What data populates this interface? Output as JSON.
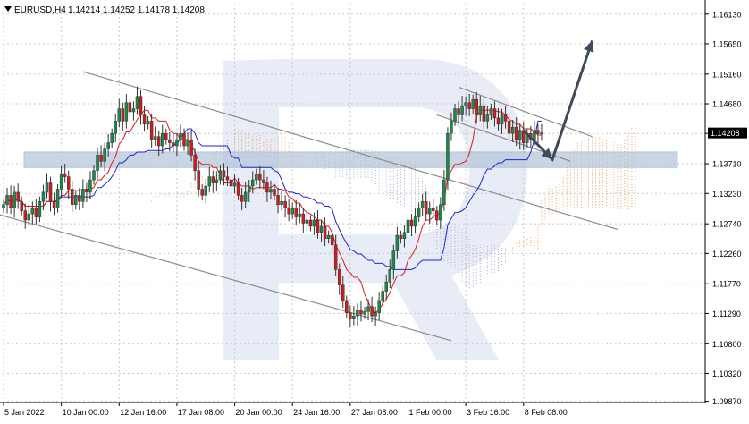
{
  "header": {
    "symbol": "EURUSD,H4",
    "ohlc": "1.14214 1.14252 1.14178 1.14208"
  },
  "chart_data": {
    "type": "candlestick",
    "symbol": "EURUSD",
    "timeframe": "H4",
    "ohlc_last": {
      "open": 1.14214,
      "high": 1.14252,
      "low": 1.14178,
      "close": 1.14208
    },
    "current_price": 1.14208,
    "current_price_label": "1.14208",
    "ylim": [
      1.0985,
      1.163
    ],
    "y_ticks": [
      1.0987,
      1.1032,
      1.108,
      1.1129,
      1.1177,
      1.1226,
      1.1274,
      1.1323,
      1.1371,
      1.142,
      1.1468,
      1.1516,
      1.1565,
      1.1613
    ],
    "y_tick_labels": [
      "1.09870",
      "1.10320",
      "1.10800",
      "1.11290",
      "1.11770",
      "1.12260",
      "1.12740",
      "1.13230",
      "1.13710",
      "1.14200",
      "1.14680",
      "1.15160",
      "1.15650",
      "1.16130"
    ],
    "x_tick_labels": [
      "5 Jan 2022",
      "10 Jan 00:00",
      "12 Jan 16:00",
      "17 Jan 08:00",
      "20 Jan 00:00",
      "24 Jan 16:00",
      "27 Jan 08:00",
      "1 Feb 00:00",
      "3 Feb 16:00",
      "8 Feb 08:00"
    ],
    "x_tick_index": [
      0,
      16,
      32,
      48,
      64,
      80,
      96,
      112,
      128,
      144
    ],
    "support_zone": [
      1.1365,
      1.139
    ],
    "channels": [
      {
        "name": "",
        "points": [
          [
            -2,
            1.129
          ],
          [
            124,
            1.1085
          ]
        ]
      },
      {
        "name": "",
        "points": [
          [
            22,
            1.152
          ],
          [
            170,
            1.1265
          ]
        ]
      },
      {
        "name": "",
        "points": [
          [
            120,
            1.145
          ],
          [
            157,
            1.1375
          ]
        ]
      },
      {
        "name": "",
        "points": [
          [
            126,
            1.1495
          ],
          [
            163,
            1.1415
          ]
        ]
      }
    ],
    "forecast_arrow": [
      [
        144,
        1.1425
      ],
      [
        152,
        1.1378
      ],
      [
        163,
        1.157
      ]
    ],
    "closes": [
      1.1305,
      1.132,
      1.13,
      1.1325,
      1.131,
      1.1295,
      1.128,
      1.129,
      1.13,
      1.1285,
      1.131,
      1.1325,
      1.134,
      1.131,
      1.13,
      1.133,
      1.1355,
      1.135,
      1.133,
      1.1305,
      1.132,
      1.131,
      1.133,
      1.1325,
      1.1345,
      1.136,
      1.1385,
      1.1375,
      1.1395,
      1.1405,
      1.142,
      1.144,
      1.146,
      1.144,
      1.147,
      1.1455,
      1.146,
      1.148,
      1.145,
      1.1435,
      1.144,
      1.141,
      1.1415,
      1.14,
      1.142,
      1.141,
      1.1405,
      1.14,
      1.141,
      1.142,
      1.14,
      1.141,
      1.1385,
      1.136,
      1.133,
      1.132,
      1.1335,
      1.135,
      1.134,
      1.1345,
      1.136,
      1.135,
      1.1345,
      1.1335,
      1.134,
      1.132,
      1.131,
      1.1325,
      1.1335,
      1.1345,
      1.1355,
      1.1345,
      1.134,
      1.1325,
      1.133,
      1.132,
      1.1305,
      1.131,
      1.13,
      1.129,
      1.13,
      1.1285,
      1.129,
      1.1275,
      1.128,
      1.127,
      1.128,
      1.126,
      1.127,
      1.125,
      1.1255,
      1.124,
      1.12,
      1.1175,
      1.115,
      1.113,
      1.112,
      1.1125,
      1.1135,
      1.1128,
      1.1132,
      1.114,
      1.1125,
      1.113,
      1.115,
      1.1165,
      1.118,
      1.12,
      1.123,
      1.1255,
      1.125,
      1.126,
      1.128,
      1.127,
      1.1285,
      1.13,
      1.131,
      1.129,
      1.13,
      1.1295,
      1.128,
      1.1305,
      1.1345,
      1.142,
      1.144,
      1.146,
      1.145,
      1.1465,
      1.147,
      1.146,
      1.1475,
      1.145,
      1.1465,
      1.144,
      1.145,
      1.146,
      1.1445,
      1.1435,
      1.145,
      1.144,
      1.142,
      1.143,
      1.141,
      1.1425,
      1.1405,
      1.142,
      1.141,
      1.1425,
      1.142,
      1.14208
    ]
  }
}
